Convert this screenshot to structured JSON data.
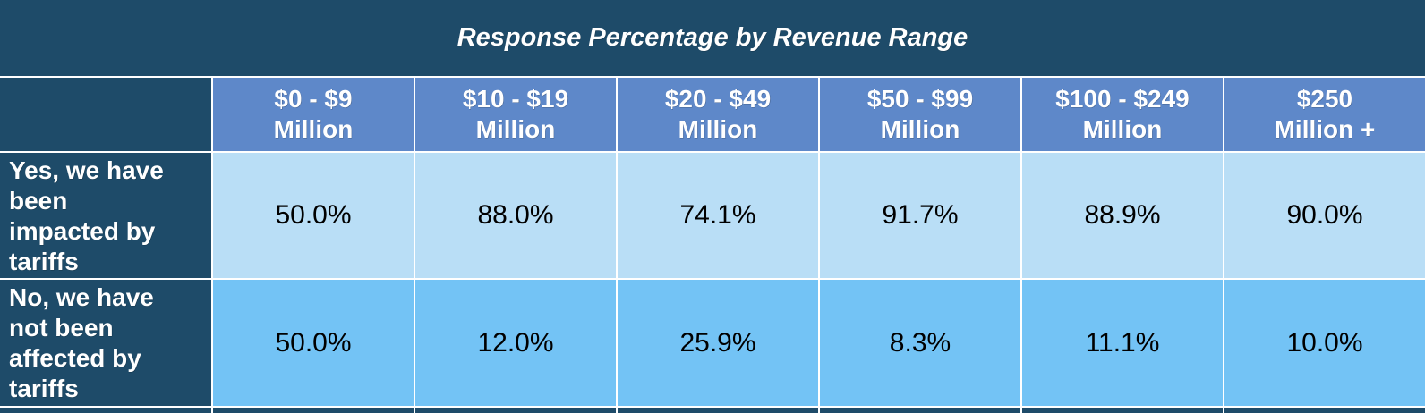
{
  "colors": {
    "navy": "#1E4B69",
    "header_blue": "#5E88C9",
    "row_yes_bg": "#B9DEF6",
    "row_no_bg": "#73C3F5",
    "grid_line": "#FFFFFF",
    "value_text": "#000000",
    "header_text": "#FFFFFF"
  },
  "table": {
    "title": "Response Percentage by Revenue Range",
    "headers": [
      "$0 - $9\nMillion",
      "$10 - $19\nMillion",
      "$20 - $49\nMillion",
      "$50 - $99\nMillion",
      "$100 - $249\nMillion",
      "$250\nMillion +"
    ],
    "rows": [
      {
        "label": "Yes, we have\nbeen\nimpacted by\ntariffs",
        "values": [
          "50.0%",
          "88.0%",
          "74.1%",
          "91.7%",
          "88.9%",
          "90.0%"
        ]
      },
      {
        "label": "No, we have\nnot been\naffected by\ntariffs",
        "values": [
          "50.0%",
          "12.0%",
          "25.9%",
          "8.3%",
          "11.1%",
          "10.0%"
        ]
      }
    ]
  },
  "chart_data": {
    "type": "table",
    "title": "Response Percentage by Revenue Range",
    "categories": [
      "$0 - $9 Million",
      "$10 - $19 Million",
      "$20 - $49 Million",
      "$50 - $99 Million",
      "$100 - $249 Million",
      "$250 Million +"
    ],
    "series": [
      {
        "name": "Yes, we have been impacted by tariffs",
        "values": [
          50.0,
          88.0,
          74.1,
          91.7,
          88.9,
          90.0
        ]
      },
      {
        "name": "No, we have not been affected by tariffs",
        "values": [
          50.0,
          12.0,
          25.9,
          8.3,
          11.1,
          10.0
        ]
      }
    ],
    "unit": "percent"
  }
}
